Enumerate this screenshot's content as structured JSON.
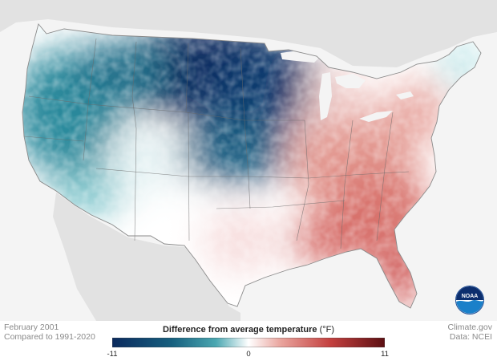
{
  "map": {
    "region": "Contiguous United States",
    "variable": "temperature anomaly",
    "palette": {
      "cold": "#0b2a5e",
      "mid": "#ffffff",
      "warm": "#5c0f12",
      "land_outside": "#e3e3e3",
      "ocean": "#f4f4f4"
    }
  },
  "meta": {
    "period": "February 2001",
    "baseline": "Compared to 1991-2020",
    "source_site": "Climate.gov",
    "source_data": "Data: NCEI"
  },
  "legend": {
    "title": "Difference from average temperature",
    "unit": "(°F)",
    "min": -11,
    "mid": 0,
    "max": 11,
    "min_label": "-11",
    "mid_label": "0",
    "max_label": "11"
  },
  "logo": {
    "icon": "noaa-logo-icon",
    "text": "NOAA"
  }
}
